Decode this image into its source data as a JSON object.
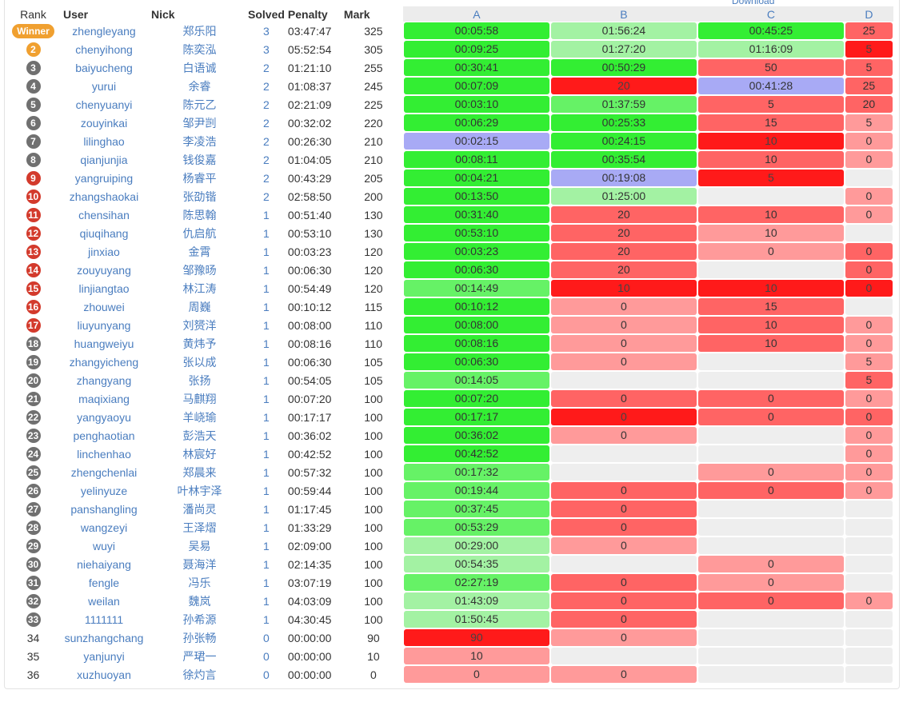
{
  "download_label": "Download",
  "headers": {
    "rank": "Rank",
    "user": "User",
    "nick": "Nick",
    "solved": "Solved",
    "penalty": "Penalty",
    "mark": "Mark",
    "problems": [
      "A",
      "B",
      "C",
      "D"
    ]
  },
  "colors": {
    "ac_strong": "#33ee33",
    "ac_medium": "#66f266",
    "ac_light": "#a3f2a3",
    "first_blood": "#a8aaf5",
    "wa_light": "#ff9a9a",
    "wa_medium": "#ff6464",
    "wa_strong": "#ff1a1a",
    "empty": "#eeeeee",
    "link": "#4a7dbf",
    "badge_gold": "#f0a030",
    "badge_silver": "#707070",
    "badge_bronze": "#d33a2c"
  },
  "rows": [
    {
      "rank": "Winner",
      "medal": "winner",
      "user": "zhengleyang",
      "nick": "郑乐阳",
      "solved": "3",
      "penalty": "03:47:47",
      "mark": "325",
      "cells": [
        {
          "t": "00:05:58",
          "s": "ac1"
        },
        {
          "t": "01:56:24",
          "s": "ac3"
        },
        {
          "t": "00:45:25",
          "s": "ac1"
        },
        {
          "t": "25",
          "s": "wa2"
        }
      ]
    },
    {
      "rank": "2",
      "medal": "gold",
      "user": "chenyihong",
      "nick": "陈奕泓",
      "solved": "3",
      "penalty": "05:52:54",
      "mark": "305",
      "cells": [
        {
          "t": "00:09:25",
          "s": "ac1"
        },
        {
          "t": "01:27:20",
          "s": "ac3"
        },
        {
          "t": "01:16:09",
          "s": "ac3"
        },
        {
          "t": "5",
          "s": "wa3"
        }
      ]
    },
    {
      "rank": "3",
      "medal": "silver",
      "user": "baiyucheng",
      "nick": "白语诚",
      "solved": "2",
      "penalty": "01:21:10",
      "mark": "255",
      "cells": [
        {
          "t": "00:30:41",
          "s": "ac1"
        },
        {
          "t": "00:50:29",
          "s": "ac1"
        },
        {
          "t": "50",
          "s": "wa2"
        },
        {
          "t": "5",
          "s": "wa2"
        }
      ]
    },
    {
      "rank": "4",
      "medal": "silver",
      "user": "yurui",
      "nick": "余睿",
      "solved": "2",
      "penalty": "01:08:37",
      "mark": "245",
      "cells": [
        {
          "t": "00:07:09",
          "s": "ac1"
        },
        {
          "t": "20",
          "s": "wa3"
        },
        {
          "t": "00:41:28",
          "s": "first"
        },
        {
          "t": "25",
          "s": "wa2"
        }
      ]
    },
    {
      "rank": "5",
      "medal": "silver",
      "user": "chenyuanyi",
      "nick": "陈元乙",
      "solved": "2",
      "penalty": "02:21:09",
      "mark": "225",
      "cells": [
        {
          "t": "00:03:10",
          "s": "ac1"
        },
        {
          "t": "01:37:59",
          "s": "ac2"
        },
        {
          "t": "5",
          "s": "wa2"
        },
        {
          "t": "20",
          "s": "wa2"
        }
      ]
    },
    {
      "rank": "6",
      "medal": "silver",
      "user": "zouyinkai",
      "nick": "邹尹剀",
      "solved": "2",
      "penalty": "00:32:02",
      "mark": "220",
      "cells": [
        {
          "t": "00:06:29",
          "s": "ac1"
        },
        {
          "t": "00:25:33",
          "s": "ac1"
        },
        {
          "t": "15",
          "s": "wa2"
        },
        {
          "t": "5",
          "s": "wa1"
        }
      ]
    },
    {
      "rank": "7",
      "medal": "silver",
      "user": "lilinghao",
      "nick": "李凌浩",
      "solved": "2",
      "penalty": "00:26:30",
      "mark": "210",
      "cells": [
        {
          "t": "00:02:15",
          "s": "first"
        },
        {
          "t": "00:24:15",
          "s": "ac1"
        },
        {
          "t": "10",
          "s": "wa3"
        },
        {
          "t": "0",
          "s": "wa1"
        }
      ]
    },
    {
      "rank": "8",
      "medal": "silver",
      "user": "qianjunjia",
      "nick": "钱俊嘉",
      "solved": "2",
      "penalty": "01:04:05",
      "mark": "210",
      "cells": [
        {
          "t": "00:08:11",
          "s": "ac1"
        },
        {
          "t": "00:35:54",
          "s": "ac1"
        },
        {
          "t": "10",
          "s": "wa2"
        },
        {
          "t": "0",
          "s": "wa1"
        }
      ]
    },
    {
      "rank": "9",
      "medal": "bronze",
      "user": "yangruiping",
      "nick": "杨睿平",
      "solved": "2",
      "penalty": "00:43:29",
      "mark": "205",
      "cells": [
        {
          "t": "00:04:21",
          "s": "ac1"
        },
        {
          "t": "00:19:08",
          "s": "first"
        },
        {
          "t": "5",
          "s": "wa3"
        },
        {
          "t": "",
          "s": "empty"
        }
      ]
    },
    {
      "rank": "10",
      "medal": "bronze",
      "user": "zhangshaokai",
      "nick": "张劭锴",
      "solved": "2",
      "penalty": "02:58:50",
      "mark": "200",
      "cells": [
        {
          "t": "00:13:50",
          "s": "ac1"
        },
        {
          "t": "01:25:00",
          "s": "ac3"
        },
        {
          "t": "",
          "s": "empty"
        },
        {
          "t": "0",
          "s": "wa1"
        }
      ]
    },
    {
      "rank": "11",
      "medal": "bronze",
      "user": "chensihan",
      "nick": "陈思翰",
      "solved": "1",
      "penalty": "00:51:40",
      "mark": "130",
      "cells": [
        {
          "t": "00:31:40",
          "s": "ac1"
        },
        {
          "t": "20",
          "s": "wa2"
        },
        {
          "t": "10",
          "s": "wa2"
        },
        {
          "t": "0",
          "s": "wa1"
        }
      ]
    },
    {
      "rank": "12",
      "medal": "bronze",
      "user": "qiuqihang",
      "nick": "仇启航",
      "solved": "1",
      "penalty": "00:53:10",
      "mark": "130",
      "cells": [
        {
          "t": "00:53:10",
          "s": "ac1"
        },
        {
          "t": "20",
          "s": "wa2"
        },
        {
          "t": "10",
          "s": "wa1"
        },
        {
          "t": "",
          "s": "empty"
        }
      ]
    },
    {
      "rank": "13",
      "medal": "bronze",
      "user": "jinxiao",
      "nick": "金霄",
      "solved": "1",
      "penalty": "00:03:23",
      "mark": "120",
      "cells": [
        {
          "t": "00:03:23",
          "s": "ac1"
        },
        {
          "t": "20",
          "s": "wa2"
        },
        {
          "t": "0",
          "s": "wa1"
        },
        {
          "t": "0",
          "s": "wa2"
        }
      ]
    },
    {
      "rank": "14",
      "medal": "bronze",
      "user": "zouyuyang",
      "nick": "邹豫旸",
      "solved": "1",
      "penalty": "00:06:30",
      "mark": "120",
      "cells": [
        {
          "t": "00:06:30",
          "s": "ac1"
        },
        {
          "t": "20",
          "s": "wa2"
        },
        {
          "t": "",
          "s": "empty"
        },
        {
          "t": "0",
          "s": "wa2"
        }
      ]
    },
    {
      "rank": "15",
      "medal": "bronze",
      "user": "linjiangtao",
      "nick": "林江涛",
      "solved": "1",
      "penalty": "00:54:49",
      "mark": "120",
      "cells": [
        {
          "t": "00:14:49",
          "s": "ac2"
        },
        {
          "t": "10",
          "s": "wa3"
        },
        {
          "t": "10",
          "s": "wa3"
        },
        {
          "t": "0",
          "s": "wa3"
        }
      ]
    },
    {
      "rank": "16",
      "medal": "bronze",
      "user": "zhouwei",
      "nick": "周巍",
      "solved": "1",
      "penalty": "00:10:12",
      "mark": "115",
      "cells": [
        {
          "t": "00:10:12",
          "s": "ac1"
        },
        {
          "t": "0",
          "s": "wa1"
        },
        {
          "t": "15",
          "s": "wa2"
        },
        {
          "t": "",
          "s": "empty"
        }
      ]
    },
    {
      "rank": "17",
      "medal": "bronze",
      "user": "liuyunyang",
      "nick": "刘赟洋",
      "solved": "1",
      "penalty": "00:08:00",
      "mark": "110",
      "cells": [
        {
          "t": "00:08:00",
          "s": "ac1"
        },
        {
          "t": "0",
          "s": "wa1"
        },
        {
          "t": "10",
          "s": "wa2"
        },
        {
          "t": "0",
          "s": "wa1"
        }
      ]
    },
    {
      "rank": "18",
      "medal": "silver",
      "user": "huangweiyu",
      "nick": "黄炜予",
      "solved": "1",
      "penalty": "00:08:16",
      "mark": "110",
      "cells": [
        {
          "t": "00:08:16",
          "s": "ac1"
        },
        {
          "t": "0",
          "s": "wa1"
        },
        {
          "t": "10",
          "s": "wa2"
        },
        {
          "t": "0",
          "s": "wa1"
        }
      ]
    },
    {
      "rank": "19",
      "medal": "silver",
      "user": "zhangyicheng",
      "nick": "张以成",
      "solved": "1",
      "penalty": "00:06:30",
      "mark": "105",
      "cells": [
        {
          "t": "00:06:30",
          "s": "ac1"
        },
        {
          "t": "0",
          "s": "wa1"
        },
        {
          "t": "",
          "s": "empty"
        },
        {
          "t": "5",
          "s": "wa1"
        }
      ]
    },
    {
      "rank": "20",
      "medal": "silver",
      "user": "zhangyang",
      "nick": "张扬",
      "solved": "1",
      "penalty": "00:54:05",
      "mark": "105",
      "cells": [
        {
          "t": "00:14:05",
          "s": "ac2"
        },
        {
          "t": "",
          "s": "empty"
        },
        {
          "t": "",
          "s": "empty"
        },
        {
          "t": "5",
          "s": "wa2"
        }
      ]
    },
    {
      "rank": "21",
      "medal": "silver",
      "user": "maqixiang",
      "nick": "马麒翔",
      "solved": "1",
      "penalty": "00:07:20",
      "mark": "100",
      "cells": [
        {
          "t": "00:07:20",
          "s": "ac1"
        },
        {
          "t": "0",
          "s": "wa2"
        },
        {
          "t": "0",
          "s": "wa2"
        },
        {
          "t": "0",
          "s": "wa1"
        }
      ]
    },
    {
      "rank": "22",
      "medal": "silver",
      "user": "yangyaoyu",
      "nick": "羊峣瑜",
      "solved": "1",
      "penalty": "00:17:17",
      "mark": "100",
      "cells": [
        {
          "t": "00:17:17",
          "s": "ac1"
        },
        {
          "t": "0",
          "s": "wa3"
        },
        {
          "t": "0",
          "s": "wa2"
        },
        {
          "t": "0",
          "s": "wa2"
        }
      ]
    },
    {
      "rank": "23",
      "medal": "silver",
      "user": "penghaotian",
      "nick": "彭浩天",
      "solved": "1",
      "penalty": "00:36:02",
      "mark": "100",
      "cells": [
        {
          "t": "00:36:02",
          "s": "ac1"
        },
        {
          "t": "0",
          "s": "wa1"
        },
        {
          "t": "",
          "s": "empty"
        },
        {
          "t": "0",
          "s": "wa1"
        }
      ]
    },
    {
      "rank": "24",
      "medal": "silver",
      "user": "linchenhao",
      "nick": "林宸好",
      "solved": "1",
      "penalty": "00:42:52",
      "mark": "100",
      "cells": [
        {
          "t": "00:42:52",
          "s": "ac1"
        },
        {
          "t": "",
          "s": "empty"
        },
        {
          "t": "",
          "s": "empty"
        },
        {
          "t": "0",
          "s": "wa1"
        }
      ]
    },
    {
      "rank": "25",
      "medal": "silver",
      "user": "zhengchenlai",
      "nick": "郑晨来",
      "solved": "1",
      "penalty": "00:57:32",
      "mark": "100",
      "cells": [
        {
          "t": "00:17:32",
          "s": "ac2"
        },
        {
          "t": "",
          "s": "empty"
        },
        {
          "t": "0",
          "s": "wa1"
        },
        {
          "t": "0",
          "s": "wa1"
        }
      ]
    },
    {
      "rank": "26",
      "medal": "silver",
      "user": "yelinyuze",
      "nick": "叶林宇泽",
      "solved": "1",
      "penalty": "00:59:44",
      "mark": "100",
      "cells": [
        {
          "t": "00:19:44",
          "s": "ac2"
        },
        {
          "t": "0",
          "s": "wa2"
        },
        {
          "t": "0",
          "s": "wa2"
        },
        {
          "t": "0",
          "s": "wa1"
        }
      ]
    },
    {
      "rank": "27",
      "medal": "silver",
      "user": "panshangling",
      "nick": "潘尚灵",
      "solved": "1",
      "penalty": "01:17:45",
      "mark": "100",
      "cells": [
        {
          "t": "00:37:45",
          "s": "ac2"
        },
        {
          "t": "0",
          "s": "wa2"
        },
        {
          "t": "",
          "s": "empty"
        },
        {
          "t": "",
          "s": "empty"
        }
      ]
    },
    {
      "rank": "28",
      "medal": "silver",
      "user": "wangzeyi",
      "nick": "王泽熠",
      "solved": "1",
      "penalty": "01:33:29",
      "mark": "100",
      "cells": [
        {
          "t": "00:53:29",
          "s": "ac2"
        },
        {
          "t": "0",
          "s": "wa2"
        },
        {
          "t": "",
          "s": "empty"
        },
        {
          "t": "",
          "s": "empty"
        }
      ]
    },
    {
      "rank": "29",
      "medal": "silver",
      "user": "wuyi",
      "nick": "吴易",
      "solved": "1",
      "penalty": "02:09:00",
      "mark": "100",
      "cells": [
        {
          "t": "00:29:00",
          "s": "ac3"
        },
        {
          "t": "0",
          "s": "wa1"
        },
        {
          "t": "",
          "s": "empty"
        },
        {
          "t": "",
          "s": "empty"
        }
      ]
    },
    {
      "rank": "30",
      "medal": "silver",
      "user": "niehaiyang",
      "nick": "聂海洋",
      "solved": "1",
      "penalty": "02:14:35",
      "mark": "100",
      "cells": [
        {
          "t": "00:54:35",
          "s": "ac3"
        },
        {
          "t": "",
          "s": "empty"
        },
        {
          "t": "0",
          "s": "wa1"
        },
        {
          "t": "",
          "s": "empty"
        }
      ]
    },
    {
      "rank": "31",
      "medal": "silver",
      "user": "fengle",
      "nick": "冯乐",
      "solved": "1",
      "penalty": "03:07:19",
      "mark": "100",
      "cells": [
        {
          "t": "02:27:19",
          "s": "ac2"
        },
        {
          "t": "0",
          "s": "wa2"
        },
        {
          "t": "0",
          "s": "wa1"
        },
        {
          "t": "",
          "s": "empty"
        }
      ]
    },
    {
      "rank": "32",
      "medal": "silver",
      "user": "weilan",
      "nick": "魏岚",
      "solved": "1",
      "penalty": "04:03:09",
      "mark": "100",
      "cells": [
        {
          "t": "01:43:09",
          "s": "ac3"
        },
        {
          "t": "0",
          "s": "wa2"
        },
        {
          "t": "0",
          "s": "wa2"
        },
        {
          "t": "0",
          "s": "wa1"
        }
      ]
    },
    {
      "rank": "33",
      "medal": "silver",
      "user": "1111111",
      "nick": "孙希源",
      "solved": "1",
      "penalty": "04:30:45",
      "mark": "100",
      "cells": [
        {
          "t": "01:50:45",
          "s": "ac3"
        },
        {
          "t": "0",
          "s": "wa2"
        },
        {
          "t": "",
          "s": "empty"
        },
        {
          "t": "",
          "s": "empty"
        }
      ]
    },
    {
      "rank": "34",
      "medal": "none",
      "user": "sunzhangchang",
      "nick": "孙张畅",
      "solved": "0",
      "penalty": "00:00:00",
      "mark": "90",
      "cells": [
        {
          "t": "90",
          "s": "wa3"
        },
        {
          "t": "0",
          "s": "wa1"
        },
        {
          "t": "",
          "s": "empty"
        },
        {
          "t": "",
          "s": "empty"
        }
      ]
    },
    {
      "rank": "35",
      "medal": "none",
      "user": "yanjunyi",
      "nick": "严珺一",
      "solved": "0",
      "penalty": "00:00:00",
      "mark": "10",
      "cells": [
        {
          "t": "10",
          "s": "wa1"
        },
        {
          "t": "",
          "s": "empty"
        },
        {
          "t": "",
          "s": "empty"
        },
        {
          "t": "",
          "s": "empty"
        }
      ]
    },
    {
      "rank": "36",
      "medal": "none",
      "user": "xuzhuoyan",
      "nick": "徐灼言",
      "solved": "0",
      "penalty": "00:00:00",
      "mark": "0",
      "cells": [
        {
          "t": "0",
          "s": "wa1"
        },
        {
          "t": "0",
          "s": "wa1"
        },
        {
          "t": "",
          "s": "empty"
        },
        {
          "t": "",
          "s": "empty"
        }
      ]
    }
  ]
}
